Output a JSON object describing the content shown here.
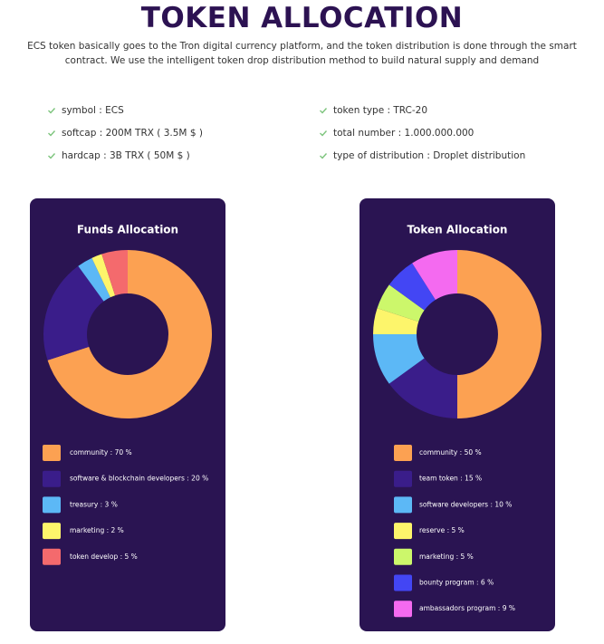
{
  "header": {
    "title": "TOKEN ALLOCATION",
    "description": [
      "ECS token basically goes to the Tron digital currency platform, and the token distribution is done through the smart",
      "contract. We use the intelligent token drop distribution method to build natural supply and demand"
    ]
  },
  "features": {
    "left": [
      "symbol : ECS",
      "softcap : 200M TRX ( 3.5M $ )",
      "hardcap : 3B TRX ( 50M $ )"
    ],
    "right": [
      "token type : TRC-20",
      "total number : 1.000.000.000",
      "type of distribution : Droplet distribution"
    ]
  },
  "chart_data": [
    {
      "type": "donut",
      "title": "Funds Allocation",
      "categories": [
        "community : 70 %",
        "software & blockchain developers : 20 %",
        "treasury : 3 %",
        "marketing : 2 %",
        "token develop : 5 %"
      ],
      "values": [
        70,
        20,
        3,
        2,
        5
      ],
      "colors": [
        "#fca152",
        "#3a1d8a",
        "#5cb8f6",
        "#fdf56b",
        "#f46a6d"
      ]
    },
    {
      "type": "donut",
      "title": "Token Allocation",
      "categories": [
        "community : 50 %",
        "team token : 15 %",
        "software developers : 10 %",
        "reserve : 5 %",
        "marketing : 5 %",
        "bounty program : 6 %",
        "ambassadors program : 9 %"
      ],
      "values": [
        50,
        15,
        10,
        5,
        5,
        6,
        9
      ],
      "colors": [
        "#fca152",
        "#3a1d8a",
        "#5cb8f6",
        "#fdf56b",
        "#ccf76b",
        "#4346f4",
        "#f46af0"
      ]
    }
  ]
}
